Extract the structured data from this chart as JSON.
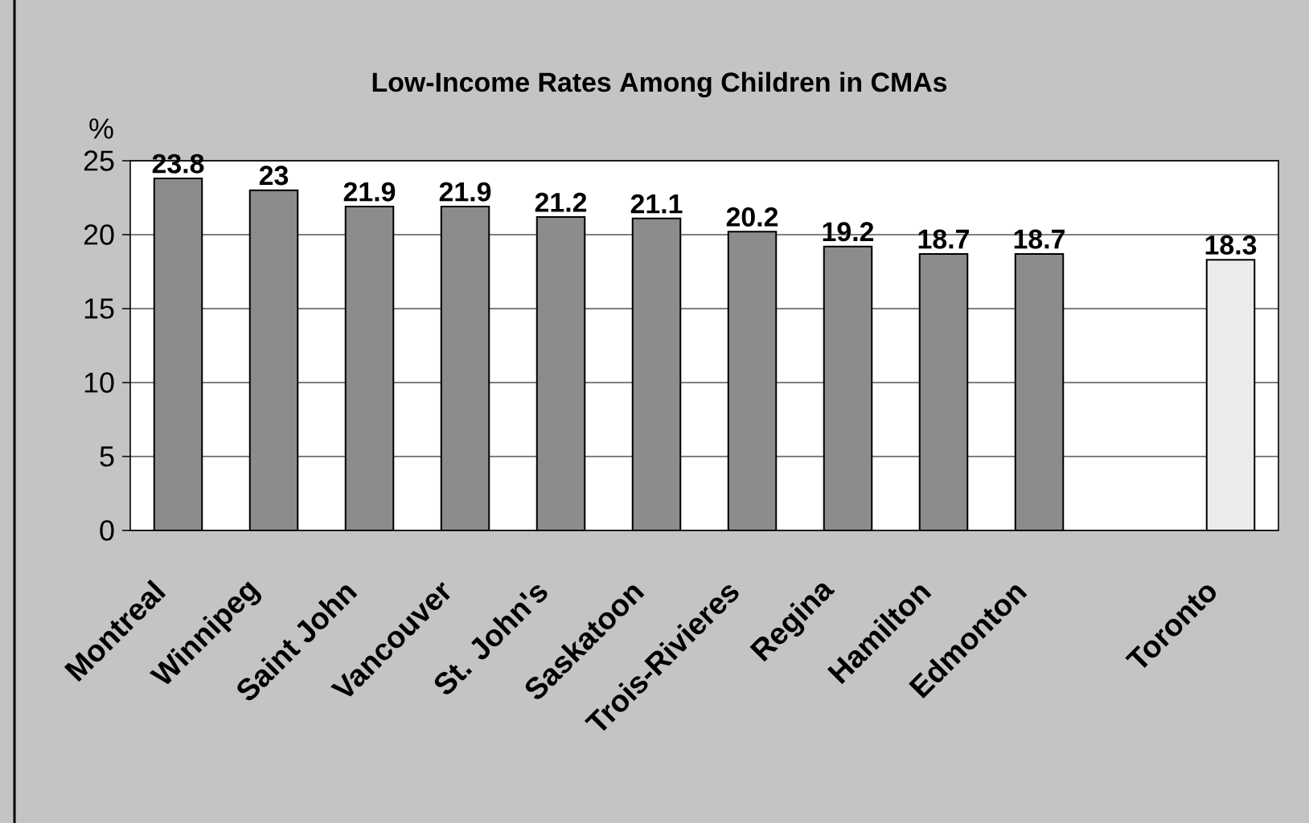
{
  "chart_data": {
    "type": "bar",
    "title": "Low-Income Rates Among Children in CMAs",
    "ylabel": "%",
    "categories": [
      "Montreal",
      "Winnipeg",
      "Saint John",
      "Vancouver",
      "St. John's",
      "Saskatoon",
      "Trois-Rivieres",
      "Regina",
      "Hamilton",
      "Edmonton",
      null,
      "Toronto"
    ],
    "values": [
      23.8,
      23,
      21.9,
      21.9,
      21.2,
      21.1,
      20.2,
      19.2,
      18.7,
      18.7,
      null,
      18.3
    ],
    "colors": [
      "#8c8c8c",
      "#8c8c8c",
      "#8c8c8c",
      "#8c8c8c",
      "#8c8c8c",
      "#8c8c8c",
      "#8c8c8c",
      "#8c8c8c",
      "#8c8c8c",
      "#8c8c8c",
      null,
      "#ebebeb"
    ],
    "ylim": [
      0,
      25
    ],
    "yticks": [
      0,
      5,
      10,
      15,
      20,
      25
    ],
    "grid": "y",
    "data_labels": true
  }
}
